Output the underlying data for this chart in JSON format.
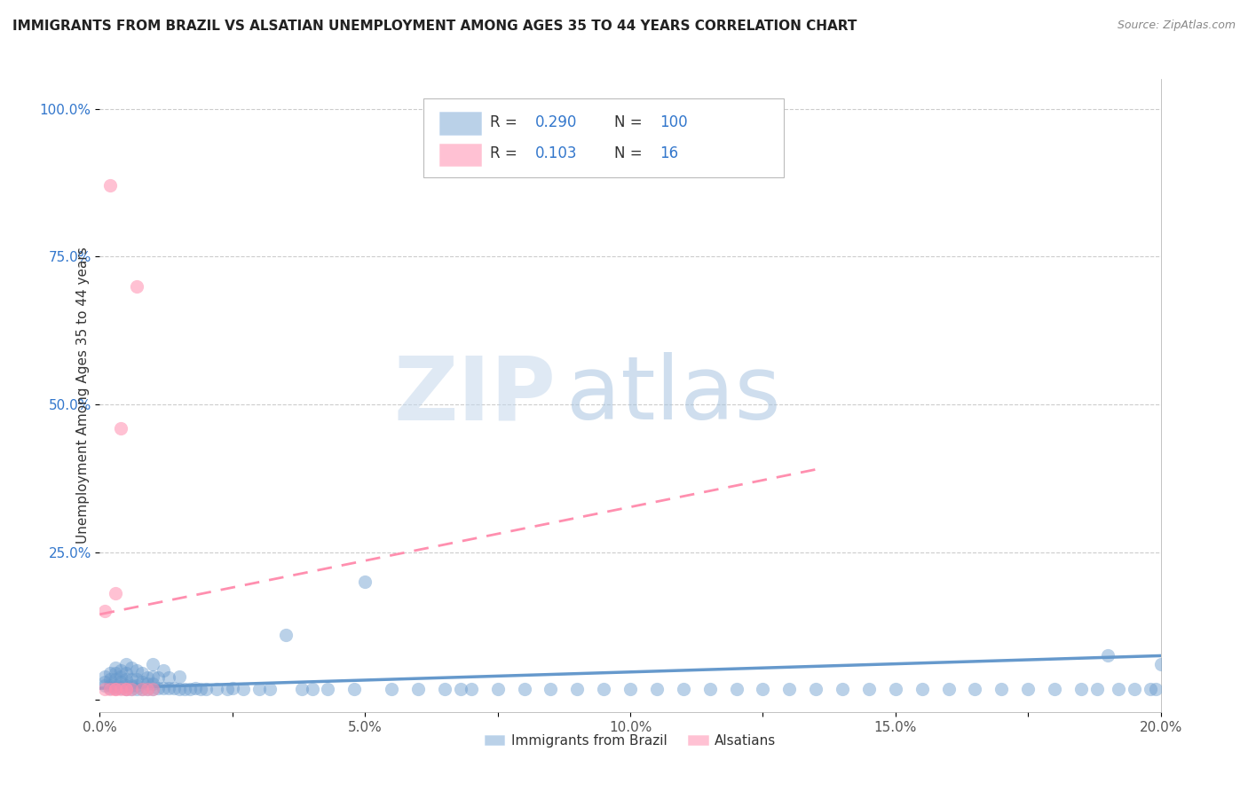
{
  "title": "IMMIGRANTS FROM BRAZIL VS ALSATIAN UNEMPLOYMENT AMONG AGES 35 TO 44 YEARS CORRELATION CHART",
  "source": "Source: ZipAtlas.com",
  "ylabel": "Unemployment Among Ages 35 to 44 years",
  "xlim": [
    0.0,
    0.2
  ],
  "ylim": [
    -0.02,
    1.05
  ],
  "xtick_labels": [
    "0.0%",
    "",
    "5.0%",
    "",
    "10.0%",
    "",
    "15.0%",
    "",
    "20.0%"
  ],
  "xtick_vals": [
    0.0,
    0.025,
    0.05,
    0.075,
    0.1,
    0.125,
    0.15,
    0.175,
    0.2
  ],
  "ytick_labels": [
    "100.0%",
    "75.0%",
    "50.0%",
    "25.0%",
    ""
  ],
  "ytick_vals": [
    1.0,
    0.75,
    0.5,
    0.25,
    0.0
  ],
  "legend_labels": [
    "Immigrants from Brazil",
    "Alsatians"
  ],
  "brazil_color": "#6699CC",
  "alsatian_color": "#FF8FAF",
  "stat_color": "#3377CC",
  "brazil_R": 0.29,
  "brazil_N": 100,
  "alsatian_R": 0.103,
  "alsatian_N": 16,
  "brazil_scatter_x": [
    0.001,
    0.001,
    0.001,
    0.002,
    0.002,
    0.002,
    0.002,
    0.003,
    0.003,
    0.003,
    0.003,
    0.003,
    0.004,
    0.004,
    0.004,
    0.004,
    0.005,
    0.005,
    0.005,
    0.005,
    0.005,
    0.006,
    0.006,
    0.006,
    0.006,
    0.007,
    0.007,
    0.007,
    0.007,
    0.008,
    0.008,
    0.008,
    0.009,
    0.009,
    0.009,
    0.01,
    0.01,
    0.01,
    0.01,
    0.011,
    0.011,
    0.012,
    0.012,
    0.013,
    0.013,
    0.014,
    0.015,
    0.015,
    0.016,
    0.017,
    0.018,
    0.019,
    0.02,
    0.022,
    0.024,
    0.025,
    0.027,
    0.03,
    0.032,
    0.035,
    0.038,
    0.04,
    0.043,
    0.048,
    0.05,
    0.055,
    0.06,
    0.065,
    0.068,
    0.07,
    0.075,
    0.08,
    0.085,
    0.09,
    0.095,
    0.1,
    0.105,
    0.11,
    0.115,
    0.12,
    0.125,
    0.13,
    0.135,
    0.14,
    0.145,
    0.15,
    0.155,
    0.16,
    0.165,
    0.17,
    0.175,
    0.18,
    0.185,
    0.188,
    0.19,
    0.192,
    0.195,
    0.198,
    0.199,
    0.2
  ],
  "brazil_scatter_y": [
    0.025,
    0.03,
    0.04,
    0.02,
    0.025,
    0.035,
    0.045,
    0.02,
    0.025,
    0.035,
    0.045,
    0.055,
    0.02,
    0.03,
    0.04,
    0.05,
    0.018,
    0.025,
    0.035,
    0.045,
    0.06,
    0.018,
    0.025,
    0.035,
    0.055,
    0.018,
    0.025,
    0.035,
    0.05,
    0.018,
    0.03,
    0.045,
    0.018,
    0.028,
    0.038,
    0.018,
    0.028,
    0.04,
    0.06,
    0.02,
    0.038,
    0.02,
    0.05,
    0.02,
    0.038,
    0.02,
    0.018,
    0.04,
    0.018,
    0.018,
    0.02,
    0.018,
    0.018,
    0.018,
    0.018,
    0.02,
    0.018,
    0.018,
    0.018,
    0.11,
    0.018,
    0.018,
    0.018,
    0.018,
    0.2,
    0.018,
    0.018,
    0.018,
    0.018,
    0.018,
    0.018,
    0.018,
    0.018,
    0.018,
    0.018,
    0.018,
    0.018,
    0.018,
    0.018,
    0.018,
    0.018,
    0.018,
    0.018,
    0.018,
    0.018,
    0.018,
    0.018,
    0.018,
    0.018,
    0.018,
    0.018,
    0.018,
    0.018,
    0.018,
    0.075,
    0.018,
    0.018,
    0.018,
    0.018,
    0.06
  ],
  "alsatian_scatter_x": [
    0.001,
    0.001,
    0.002,
    0.002,
    0.003,
    0.003,
    0.003,
    0.004,
    0.004,
    0.005,
    0.005,
    0.006,
    0.007,
    0.008,
    0.009,
    0.01
  ],
  "alsatian_scatter_y": [
    0.018,
    0.15,
    0.018,
    0.87,
    0.018,
    0.18,
    0.018,
    0.018,
    0.46,
    0.018,
    0.018,
    0.018,
    0.7,
    0.018,
    0.018,
    0.018
  ],
  "brazil_line_x": [
    0.0,
    0.2
  ],
  "brazil_line_y": [
    0.02,
    0.075
  ],
  "alsatian_line_x": [
    0.0,
    0.135
  ],
  "alsatian_line_y": [
    0.145,
    0.39
  ],
  "watermark_zip": "ZIP",
  "watermark_atlas": "atlas",
  "background_color": "#FFFFFF",
  "grid_color": "#CCCCCC"
}
